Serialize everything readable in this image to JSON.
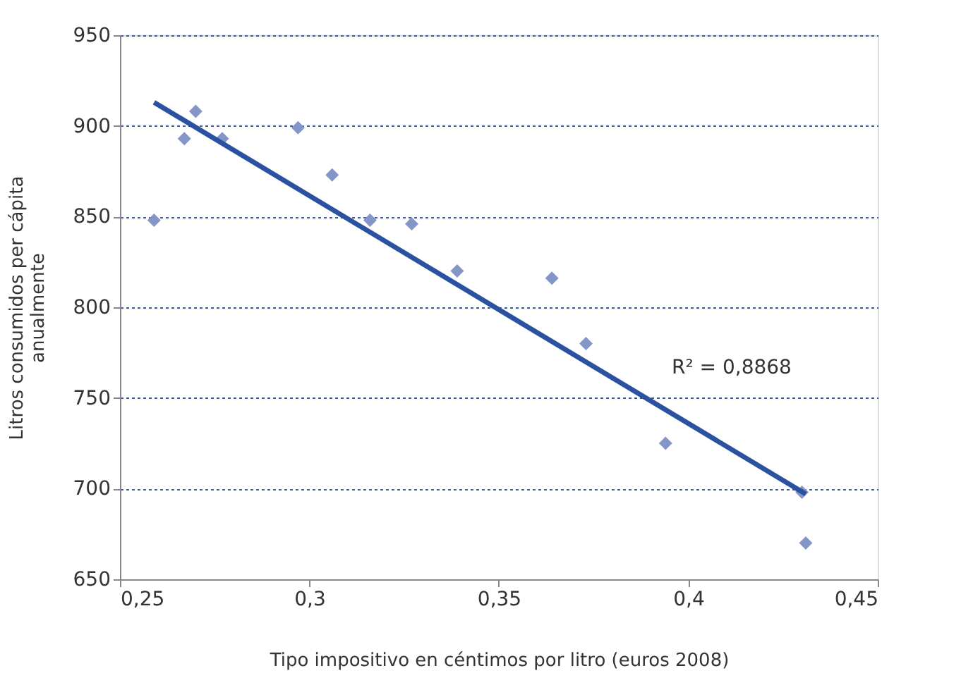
{
  "chart_data": {
    "type": "scatter",
    "xlabel": "Tipo impositivo en céntimos por litro (euros 2008)",
    "ylabel": "Litros consumidos per cápita\nanualmente",
    "xlim": [
      0.25,
      0.45
    ],
    "ylim": [
      650,
      950
    ],
    "xticks": [
      {
        "value": 0.25,
        "label": "0,25"
      },
      {
        "value": 0.3,
        "label": "0,3"
      },
      {
        "value": 0.35,
        "label": "0,35"
      },
      {
        "value": 0.4,
        "label": "0,4"
      },
      {
        "value": 0.45,
        "label": "0,45"
      }
    ],
    "yticks": [
      650,
      700,
      750,
      800,
      850,
      900,
      950
    ],
    "grid": "y",
    "series": [
      {
        "color": "#8496c8",
        "marker": "diamond",
        "x": [
          0.259,
          0.267,
          0.27,
          0.277,
          0.297,
          0.306,
          0.316,
          0.327,
          0.339,
          0.364,
          0.373,
          0.394,
          0.43,
          0.431
        ],
        "values": [
          848,
          893,
          908,
          893,
          899,
          873,
          848,
          846,
          820,
          816,
          780,
          725,
          698,
          670
        ]
      },
      {
        "type": "line",
        "color": "#2a52a0",
        "line_style": "solid",
        "marker": "none",
        "x": [
          0.259,
          0.431
        ],
        "values": [
          913,
          697
        ]
      }
    ],
    "annotations": [
      "R² = 0,8868"
    ]
  }
}
